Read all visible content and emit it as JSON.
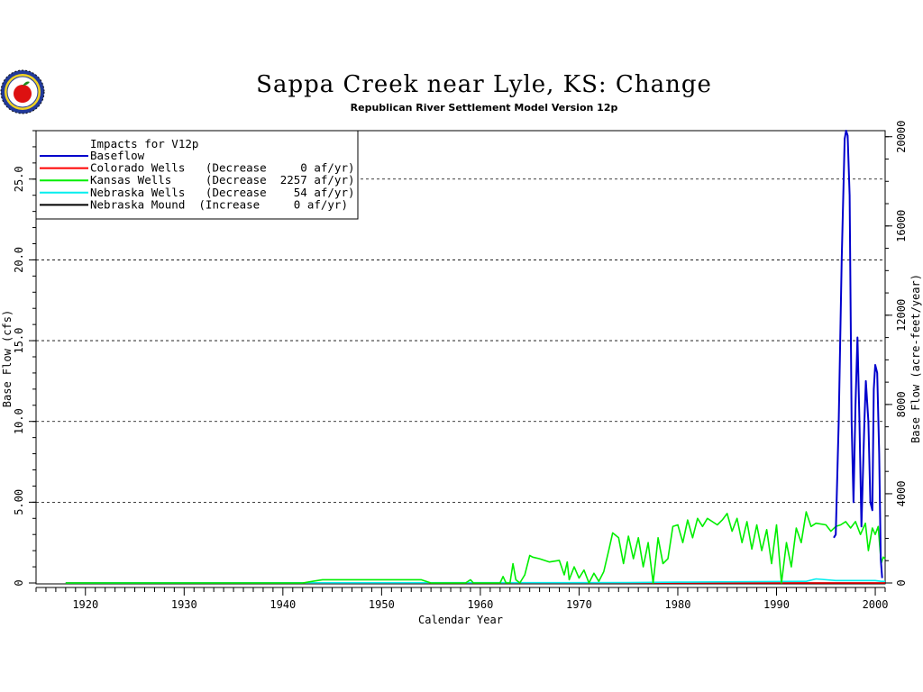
{
  "chart_data": {
    "type": "line",
    "title": "Sappa Creek near Lyle, KS: Change",
    "subtitle": "Republican River Settlement Model Version 12p",
    "xlabel": "Calendar Year",
    "ylabel": "Base Flow (cfs)",
    "y2label": "Base Flow (acre-feet/year)",
    "xlim": [
      1915,
      2001
    ],
    "ylim": [
      0,
      28
    ],
    "y2lim": [
      0,
      20272
    ],
    "xticks": [
      "1920",
      "1930",
      "1940",
      "1950",
      "1960",
      "1970",
      "1980",
      "1990",
      "2000"
    ],
    "yticks": [
      "0",
      "5.00",
      "10.0",
      "15.0",
      "20.0",
      "25.0"
    ],
    "y2ticks": [
      "0",
      "4000",
      "8000",
      "12000",
      "16000",
      "20000"
    ],
    "grid": "horizontal dashed",
    "legend_position": "top-left",
    "legend": {
      "header": "Impacts for V12p",
      "entries": [
        {
          "text": "Baseflow",
          "color": "#0000cc"
        },
        {
          "text": "Colorado Wells   (Decrease     0 af/yr)",
          "color": "#ff0000"
        },
        {
          "text": "Kansas Wells     (Decrease  2257 af/yr)",
          "color": "#00ee00"
        },
        {
          "text": "Nebraska Wells   (Decrease    54 af/yr)",
          "color": "#00eeee"
        },
        {
          "text": "Nebraska Mound  (Increase     0 af/yr)",
          "color": "#000000"
        }
      ]
    },
    "series": [
      {
        "name": "Baseflow",
        "color": "#0000cc",
        "x": [
          1995.8,
          1996.0,
          1996.3,
          1996.6,
          1996.9,
          1997.05,
          1997.2,
          1997.4,
          1997.6,
          1997.8,
          1998.0,
          1998.2,
          1998.4,
          1998.6,
          1998.9,
          1999.05,
          1999.3,
          1999.5,
          1999.7,
          1999.85,
          2000.0,
          2000.2,
          2000.4,
          2000.55,
          2000.7
        ],
        "values": [
          2.8,
          3.0,
          10.0,
          20.0,
          27.5,
          28.0,
          27.7,
          24.0,
          10.0,
          5.0,
          11.0,
          15.2,
          10.0,
          3.5,
          10.0,
          12.5,
          10.0,
          5.0,
          4.5,
          12.0,
          13.5,
          13.0,
          8.0,
          1.5,
          0.3
        ]
      },
      {
        "name": "Colorado Wells",
        "color": "#ff0000",
        "x": [
          1918,
          2001
        ],
        "values": [
          0,
          0
        ]
      },
      {
        "name": "Kansas Wells",
        "color": "#00ee00",
        "x": [
          1918,
          1942,
          1943,
          1944,
          1954,
          1955,
          1958.5,
          1959,
          1959.3,
          1962,
          1962.3,
          1962.6,
          1963,
          1963.3,
          1963.6,
          1964,
          1964.5,
          1965,
          1965.3,
          1966,
          1967,
          1968,
          1968.5,
          1968.8,
          1969,
          1969.5,
          1970,
          1970.5,
          1971,
          1971.5,
          1972,
          1972.5,
          1973,
          1973.4,
          1974,
          1974.5,
          1975,
          1975.5,
          1976,
          1976.5,
          1977,
          1977.5,
          1978,
          1978.5,
          1979,
          1979.5,
          1980,
          1980.5,
          1981,
          1981.5,
          1982,
          1982.5,
          1983,
          1984,
          1984.5,
          1985,
          1985.5,
          1986,
          1986.5,
          1987,
          1987.5,
          1988,
          1988.5,
          1989,
          1989.5,
          1990,
          1990.5,
          1991,
          1991.5,
          1992,
          1992.5,
          1993,
          1993.5,
          1994,
          1995,
          1995.5,
          1996,
          1996.5,
          1997,
          1997.5,
          1998,
          1998.5,
          1999,
          1999.3,
          1999.7,
          2000,
          2000.3,
          2000.6,
          2000.8,
          2001
        ],
        "values": [
          0,
          0,
          0.1,
          0.2,
          0.2,
          0,
          0,
          0.2,
          0,
          0,
          0.4,
          0,
          0,
          1.2,
          0.2,
          0,
          0.5,
          1.7,
          1.6,
          1.5,
          1.3,
          1.4,
          0.5,
          1.3,
          0.2,
          1.0,
          0.3,
          0.8,
          0,
          0.6,
          0.1,
          0.7,
          2.0,
          3.1,
          2.8,
          1.2,
          2.9,
          1.5,
          2.8,
          1.0,
          2.5,
          0,
          2.8,
          1.2,
          1.5,
          3.5,
          3.6,
          2.5,
          3.9,
          2.8,
          4.0,
          3.5,
          4.0,
          3.6,
          3.9,
          4.3,
          3.2,
          4.0,
          2.5,
          3.8,
          2.1,
          3.6,
          2.0,
          3.3,
          1.2,
          3.6,
          0,
          2.5,
          1.0,
          3.4,
          2.5,
          4.4,
          3.5,
          3.7,
          3.6,
          3.2,
          3.5,
          3.6,
          3.8,
          3.4,
          3.8,
          3.0,
          3.7,
          2.0,
          3.4,
          3.0,
          3.5,
          1.2,
          1.6,
          1.5
        ]
      },
      {
        "name": "Nebraska Wells",
        "color": "#00eeee",
        "x": [
          1918,
          1975,
          1980,
          1993,
          1994,
          1996,
          2000,
          2000.6,
          2001
        ],
        "values": [
          0,
          0.02,
          0.05,
          0.1,
          0.25,
          0.15,
          0.15,
          0.1,
          0.1
        ]
      },
      {
        "name": "Nebraska Mound",
        "color": "#000000",
        "x": [
          1918,
          2001
        ],
        "values": [
          0,
          0
        ]
      }
    ]
  },
  "logo": {
    "name": "agency seal"
  }
}
